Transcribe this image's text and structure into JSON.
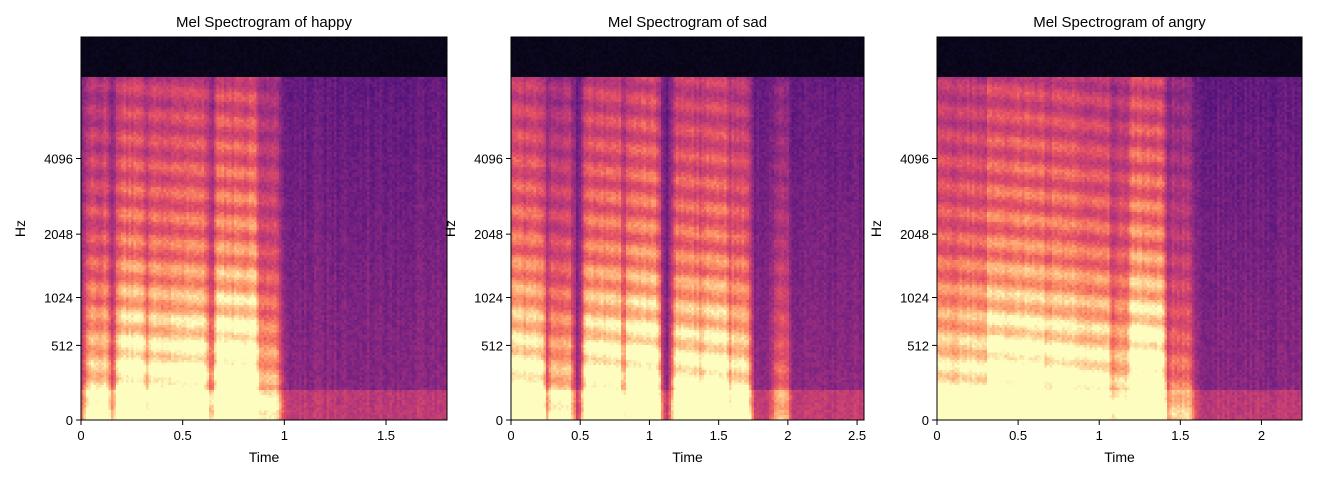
{
  "chart_data": [
    {
      "type": "heatmap",
      "title": "Mel Spectrogram of happy",
      "xlabel": "Time",
      "ylabel": "Hz",
      "xlim": [
        0,
        1.8
      ],
      "x_ticks": [
        0,
        0.5,
        1,
        1.5
      ],
      "x_tick_labels": [
        "0",
        "0.5",
        "1",
        "1.5"
      ],
      "y_ticks": [
        0,
        512,
        1024,
        2048,
        4096
      ],
      "y_tick_labels": [
        "0",
        "512",
        "1024",
        "2048",
        "4096"
      ],
      "y_scale": "mel",
      "colormap": "magma",
      "bands": [
        {
          "t0": 0.05,
          "t1": 0.12,
          "strength": 0.65
        },
        {
          "t0": 0.2,
          "t1": 0.3,
          "strength": 0.85
        },
        {
          "t0": 0.35,
          "t1": 0.45,
          "strength": 0.8
        },
        {
          "t0": 0.47,
          "t1": 0.6,
          "strength": 0.85
        },
        {
          "t0": 0.68,
          "t1": 0.85,
          "strength": 0.95
        },
        {
          "t0": 0.85,
          "t1": 0.95,
          "strength": 0.55
        }
      ]
    },
    {
      "type": "heatmap",
      "title": "Mel Spectrogram of sad",
      "xlabel": "Time",
      "ylabel": "Hz",
      "xlim": [
        0,
        2.55
      ],
      "x_ticks": [
        0,
        0.5,
        1,
        1.5,
        2,
        2.5
      ],
      "x_tick_labels": [
        "0",
        "0.5",
        "1",
        "1.5",
        "2",
        "2.5"
      ],
      "y_ticks": [
        0,
        512,
        1024,
        2048,
        4096
      ],
      "y_tick_labels": [
        "0",
        "512",
        "1024",
        "2048",
        "4096"
      ],
      "y_scale": "mel",
      "colormap": "magma",
      "bands": [
        {
          "t0": 0.02,
          "t1": 0.22,
          "strength": 0.8
        },
        {
          "t0": 0.3,
          "t1": 0.42,
          "strength": 0.6
        },
        {
          "t0": 0.55,
          "t1": 0.78,
          "strength": 0.85
        },
        {
          "t0": 0.85,
          "t1": 1.05,
          "strength": 0.9
        },
        {
          "t0": 1.2,
          "t1": 1.35,
          "strength": 0.8
        },
        {
          "t0": 1.4,
          "t1": 1.55,
          "strength": 0.85
        },
        {
          "t0": 1.6,
          "t1": 1.7,
          "strength": 0.7
        },
        {
          "t0": 1.92,
          "t1": 1.98,
          "strength": 0.35
        }
      ]
    },
    {
      "type": "heatmap",
      "title": "Mel Spectrogram of angry",
      "xlabel": "Time",
      "ylabel": "Hz",
      "xlim": [
        0,
        2.25
      ],
      "x_ticks": [
        0,
        0.5,
        1,
        1.5,
        2
      ],
      "x_tick_labels": [
        "0",
        "0.5",
        "1",
        "1.5",
        "2"
      ],
      "y_ticks": [
        0,
        512,
        1024,
        2048,
        4096
      ],
      "y_tick_labels": [
        "0",
        "512",
        "1024",
        "2048",
        "4096"
      ],
      "y_scale": "mel",
      "colormap": "magma",
      "bands": [
        {
          "t0": 0.0,
          "t1": 0.12,
          "strength": 0.7
        },
        {
          "t0": 0.15,
          "t1": 0.3,
          "strength": 0.75
        },
        {
          "t0": 0.32,
          "t1": 0.48,
          "strength": 0.9
        },
        {
          "t0": 0.5,
          "t1": 0.65,
          "strength": 0.9
        },
        {
          "t0": 0.68,
          "t1": 0.85,
          "strength": 0.85
        },
        {
          "t0": 0.88,
          "t1": 1.05,
          "strength": 0.8
        },
        {
          "t0": 1.1,
          "t1": 1.2,
          "strength": 0.6
        },
        {
          "t0": 1.2,
          "t1": 1.38,
          "strength": 0.95
        },
        {
          "t0": 1.45,
          "t1": 1.55,
          "strength": 0.4
        }
      ]
    }
  ]
}
